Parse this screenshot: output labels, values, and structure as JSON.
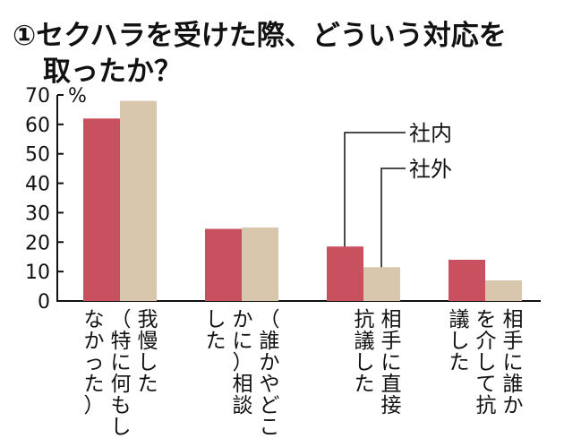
{
  "title": {
    "line1": "①セクハラを受けた際、どういう対応を",
    "line2": "取ったか？"
  },
  "chart_data": {
    "type": "bar",
    "unit": "%",
    "ylim": [
      0,
      70
    ],
    "yticks": [
      0,
      10,
      20,
      30,
      40,
      50,
      60,
      70
    ],
    "categories": [
      {
        "columns": [
          "我慢した",
          "（特に何もし",
          "なかった）"
        ]
      },
      {
        "columns": [
          "（誰かやどこ",
          "かに）相談",
          "した"
        ]
      },
      {
        "columns": [
          "相手に直接",
          "抗議した"
        ]
      },
      {
        "columns": [
          "相手に誰か",
          "を介して抗",
          "議した"
        ]
      }
    ],
    "series": [
      {
        "name": "社内",
        "values": [
          62,
          24.5,
          18.5,
          14
        ],
        "color": "#c8505f"
      },
      {
        "name": "社外",
        "values": [
          68,
          25,
          11.5,
          7
        ],
        "color": "#d9c7ad"
      }
    ],
    "grid": false,
    "legend": "callout-labels"
  }
}
